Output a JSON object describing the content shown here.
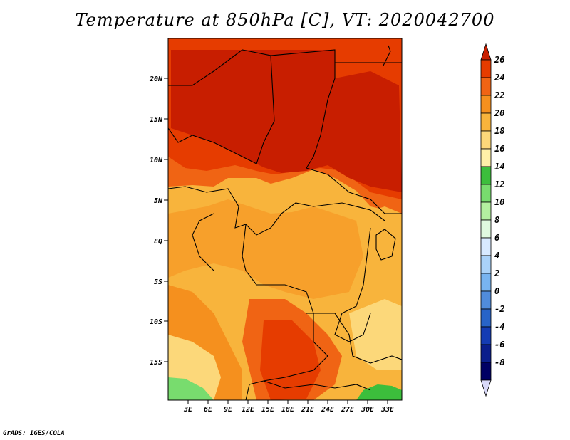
{
  "title": "Temperature at 850hPa [C], VT: 2020042700",
  "footer": "GrADS: IGES/COLA",
  "map": {
    "lat_ticks": [
      "20N",
      "15N",
      "10N",
      "5N",
      "EQ",
      "5S",
      "10S",
      "15S"
    ],
    "lon_ticks": [
      "3E",
      "6E",
      "9E",
      "12E",
      "15E",
      "18E",
      "21E",
      "24E",
      "27E",
      "30E",
      "33E"
    ]
  },
  "colorbar": {
    "labels": [
      "26",
      "24",
      "22",
      "20",
      "18",
      "16",
      "14",
      "12",
      "10",
      "8",
      "6",
      "4",
      "2",
      "0",
      "-2",
      "-4",
      "-6",
      "-8"
    ],
    "colors": [
      "#c81e00",
      "#e63c00",
      "#f06414",
      "#f5901e",
      "#f8b43c",
      "#fcd87a",
      "#fff0a8",
      "#3cbe3c",
      "#78dc6e",
      "#b4f0a0",
      "#e0fae0",
      "#d8eaff",
      "#aad2f8",
      "#78b4f0",
      "#508cdc",
      "#2864c8",
      "#143cb4",
      "#0a1e8c",
      "#000064",
      "#d8d8f8"
    ]
  }
}
